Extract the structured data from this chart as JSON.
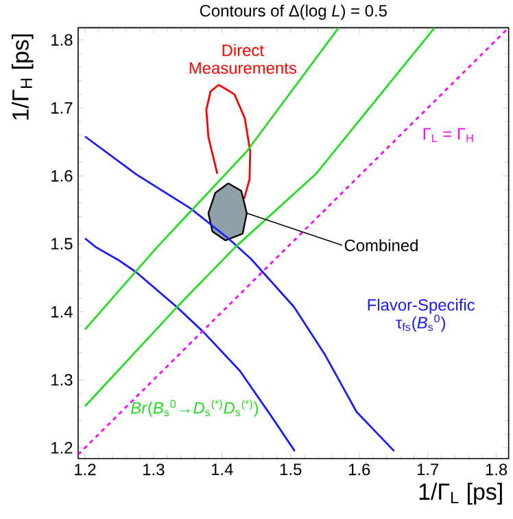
{
  "chart_data": {
    "type": "line",
    "title": "Contours of Δ(log *L*) = 0.5",
    "xlabel": "1/Γ$_{L}$ [ps]",
    "ylabel": "1/Γ$_{H}$ [ps]",
    "xlim": [
      1.19,
      1.818
    ],
    "ylim": [
      1.184,
      1.818
    ],
    "xticks": [
      1.2,
      1.3,
      1.4,
      1.5,
      1.6,
      1.7,
      1.8
    ],
    "yticks": [
      1.2,
      1.3,
      1.4,
      1.5,
      1.6,
      1.7,
      1.8
    ],
    "series": [
      {
        "name": "Direct Measurements",
        "color": "#ff0000",
        "x": [
          1.395,
          1.418,
          1.433,
          1.441,
          1.44,
          1.432,
          1.422,
          1.408,
          1.393,
          1.38,
          1.377,
          1.383,
          1.395
        ],
        "values": [
          1.734,
          1.72,
          1.685,
          1.636,
          1.595,
          1.566,
          null,
          null,
          1.603,
          1.657,
          1.697,
          1.724,
          1.734
        ]
      },
      {
        "name": "Combined",
        "type": "area",
        "color": "#8fa0a8",
        "x": [
          1.409,
          1.428,
          1.436,
          1.43,
          1.405,
          1.386,
          1.38,
          1.39,
          1.409
        ],
        "values": [
          1.589,
          1.578,
          1.545,
          1.515,
          1.505,
          1.518,
          1.545,
          1.575,
          1.589
        ]
      },
      {
        "name": "Flavor-Specific τ$_{fs}$(*B*$_{s}$$^{0}$)",
        "color": "#1a1aff",
        "x": [
          1.2,
          1.275,
          1.354,
          1.409,
          1.442,
          1.505,
          1.55,
          1.596,
          1.651
        ],
        "values": [
          1.658,
          1.602,
          1.552,
          1.508,
          1.478,
          1.407,
          1.337,
          1.253,
          1.195
        ]
      },
      {
        "color": "#1a1aff",
        "x": [
          1.2,
          1.216,
          1.249,
          1.275,
          1.334,
          1.373,
          1.426,
          1.472,
          1.506
        ],
        "values": [
          1.508,
          1.495,
          1.476,
          1.458,
          1.407,
          1.37,
          1.313,
          1.246,
          1.195
        ]
      },
      {
        "name": "*Br*(*B*$_{s}$$^{0}$→*D*$_{s}$$^{(*)}$*D*$_{s}$$^{(*)}$)",
        "color": "#22dd22",
        "x": [
          1.2,
          1.305,
          1.436,
          1.57
        ],
        "values": [
          1.374,
          1.495,
          1.636,
          1.818
        ]
      },
      {
        "color": "#22dd22",
        "x": [
          1.2,
          1.337,
          1.419,
          1.537,
          1.71
        ],
        "values": [
          1.261,
          1.41,
          1.495,
          1.603,
          1.818
        ]
      },
      {
        "name": "Γ$_{L}$ = Γ$_{H}$",
        "color": "#ff00ff",
        "line_style": "dashed",
        "x": [
          1.19,
          1.818
        ],
        "values": [
          1.19,
          1.818
        ]
      }
    ]
  }
}
